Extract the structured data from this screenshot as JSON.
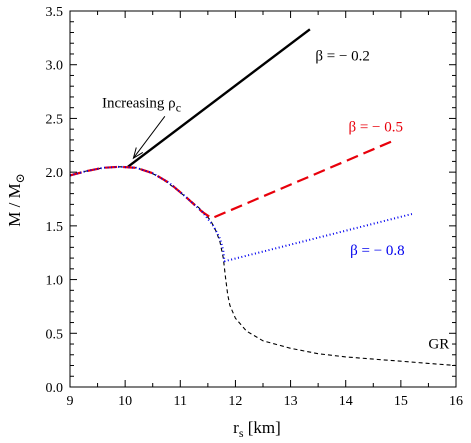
{
  "chart_data": {
    "type": "line",
    "xlabel": "r",
    "xlabel_sub": "s",
    "xlabel_unit": " [km]",
    "ylabel": "M / M",
    "ylabel_sub": "⊙",
    "xlim": [
      9,
      16
    ],
    "ylim": [
      0,
      3.5
    ],
    "xticks": [
      "9",
      "10",
      "11",
      "12",
      "13",
      "14",
      "15",
      "16"
    ],
    "yticks": [
      "0.0",
      "0.5",
      "1.0",
      "1.5",
      "2.0",
      "2.5",
      "3.0",
      "3.5"
    ],
    "grid": false,
    "arrow_annotation": {
      "text": "Increasing ρ",
      "sub": "c",
      "from": [
        10.72,
        2.52
      ],
      "to": [
        10.15,
        2.13
      ]
    },
    "series": [
      {
        "name": "GR",
        "color": "#000000",
        "style": "short-dash",
        "label_at": [
          15.5,
          0.36
        ],
        "x": [
          9.0,
          9.2,
          9.4,
          9.6,
          9.8,
          10.0,
          10.2,
          10.4,
          10.6,
          10.8,
          11.0,
          11.2,
          11.4,
          11.55,
          11.65,
          11.72,
          11.78,
          11.82,
          11.86,
          11.9,
          12.0,
          12.2,
          12.5,
          13.0,
          13.5,
          14.0,
          14.5,
          15.0,
          15.5,
          16.0
        ],
        "values": [
          1.97,
          2.0,
          2.02,
          2.04,
          2.05,
          2.05,
          2.04,
          2.01,
          1.96,
          1.89,
          1.81,
          1.73,
          1.64,
          1.55,
          1.45,
          1.35,
          1.2,
          1.02,
          0.86,
          0.76,
          0.64,
          0.52,
          0.43,
          0.36,
          0.31,
          0.28,
          0.26,
          0.24,
          0.22,
          0.2
        ]
      },
      {
        "name": "β = − 0.2",
        "color": "#000000",
        "style": "solid",
        "label_at": [
          13.45,
          3.04
        ],
        "x": [
          10.05,
          13.35
        ],
        "values": [
          2.05,
          3.33
        ]
      },
      {
        "name": "β = − 0.5",
        "color": "#e8000b",
        "style": "long-dash",
        "label_at": [
          14.05,
          2.38
        ],
        "x": [
          9.0,
          9.3,
          9.6,
          9.9,
          10.2,
          10.5,
          10.8,
          11.1,
          11.4,
          11.57,
          11.57,
          14.9
        ],
        "values": [
          1.97,
          2.01,
          2.04,
          2.05,
          2.04,
          1.99,
          1.9,
          1.77,
          1.63,
          1.57,
          1.57,
          2.3
        ]
      },
      {
        "name": "β = − 0.8",
        "color": "#0000ee",
        "style": "dotted",
        "label_at": [
          14.08,
          1.23
        ],
        "x": [
          9.0,
          9.3,
          9.6,
          9.9,
          10.2,
          10.5,
          10.8,
          11.1,
          11.4,
          11.6,
          11.72,
          11.78,
          11.8,
          11.8,
          15.2
        ],
        "values": [
          1.97,
          2.01,
          2.04,
          2.05,
          2.04,
          1.99,
          1.9,
          1.77,
          1.63,
          1.5,
          1.38,
          1.27,
          1.17,
          1.17,
          1.61
        ]
      }
    ]
  }
}
